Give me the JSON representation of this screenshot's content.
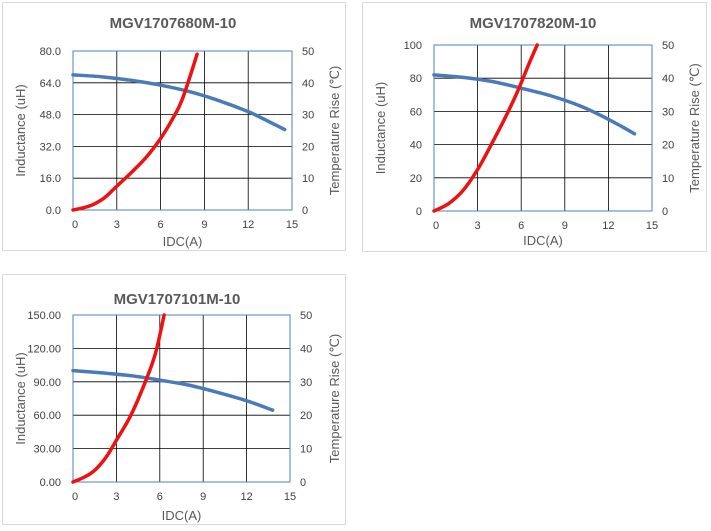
{
  "chart_data": [
    {
      "type": "line",
      "title": "MGV1707680M-10",
      "xlabel": "IDC(A)",
      "ylabel": "Inductance (uH)",
      "y2label": "Temperature Rise (℃)",
      "xlim": [
        0,
        15
      ],
      "ylim": [
        0,
        80
      ],
      "y2lim": [
        0,
        50
      ],
      "x_ticks": [
        "0",
        "3",
        "6",
        "9",
        "12",
        "15"
      ],
      "y_ticks": [
        "0.0",
        "16.0",
        "32.0",
        "48.0",
        "64.0",
        "80.0"
      ],
      "y2_ticks": [
        "0",
        "10",
        "20",
        "30",
        "40",
        "50"
      ],
      "series": [
        {
          "name": "Inductance",
          "axis": "left",
          "color": "#4a7ab8",
          "x": [
            0,
            2,
            4,
            6,
            8,
            10,
            12,
            13,
            14.5
          ],
          "values": [
            68,
            67,
            65.2,
            62.8,
            59.5,
            55,
            49.5,
            46,
            40.5
          ]
        },
        {
          "name": "Temperature Rise",
          "axis": "right",
          "color": "#ee1111",
          "x": [
            0,
            0.8,
            1.5,
            2.2,
            3,
            4,
            5,
            6,
            6.8,
            7.5,
            8.5
          ],
          "values": [
            0,
            0.8,
            2,
            4,
            7.5,
            11.8,
            16.5,
            22.5,
            28.5,
            35,
            49
          ]
        }
      ]
    },
    {
      "type": "line",
      "title": "MGV1707820M-10",
      "xlabel": "IDC(A)",
      "ylabel": "Inductance (uH)",
      "y2label": "Temperature Rise (℃)",
      "xlim": [
        0,
        15
      ],
      "ylim": [
        0,
        100
      ],
      "y2lim": [
        0,
        50
      ],
      "x_ticks": [
        "0",
        "3",
        "6",
        "9",
        "12",
        "15"
      ],
      "y_ticks": [
        "0",
        "20",
        "40",
        "60",
        "80",
        "100"
      ],
      "y2_ticks": [
        "0",
        "10",
        "20",
        "30",
        "40",
        "50"
      ],
      "series": [
        {
          "name": "Inductance",
          "axis": "left",
          "color": "#4a7ab8",
          "x": [
            0,
            2,
            4,
            6,
            8,
            10,
            11.5,
            13,
            13.8
          ],
          "values": [
            82,
            80.5,
            78,
            74,
            69.5,
            63.5,
            57.5,
            50.5,
            46.5
          ]
        },
        {
          "name": "Temperature Rise",
          "axis": "right",
          "color": "#ee1111",
          "x": [
            0,
            1,
            2,
            3,
            4,
            5,
            5.8,
            6.5,
            7.1
          ],
          "values": [
            0,
            2.2,
            6.2,
            12.5,
            20.5,
            29,
            36.5,
            44,
            50
          ]
        }
      ]
    },
    {
      "type": "line",
      "title": "MGV1707101M-10",
      "xlabel": "IDC(A)",
      "ylabel": "Inductance (uH)",
      "y2label": "Temperature Rise (℃)",
      "xlim": [
        0,
        15
      ],
      "ylim": [
        0,
        150
      ],
      "y2lim": [
        0,
        50
      ],
      "x_ticks": [
        "0",
        "3",
        "6",
        "9",
        "12",
        "15"
      ],
      "y_ticks": [
        "0.00",
        "30.00",
        "60.00",
        "90.00",
        "120.00",
        "150.00"
      ],
      "y2_ticks": [
        "0",
        "10",
        "20",
        "30",
        "40",
        "50"
      ],
      "series": [
        {
          "name": "Inductance",
          "axis": "left",
          "color": "#4a7ab8",
          "x": [
            0,
            2,
            4,
            6,
            8,
            10,
            12,
            13.8
          ],
          "values": [
            100,
            98,
            95.5,
            91.5,
            87,
            80.5,
            73,
            64.5
          ]
        },
        {
          "name": "Temperature Rise",
          "axis": "right",
          "color": "#ee1111",
          "x": [
            0,
            0.8,
            1.5,
            2.3,
            3,
            4,
            5,
            5.7,
            6.3
          ],
          "values": [
            0,
            1.5,
            3.5,
            7.5,
            12.5,
            20,
            30,
            38.5,
            50
          ]
        }
      ]
    }
  ]
}
